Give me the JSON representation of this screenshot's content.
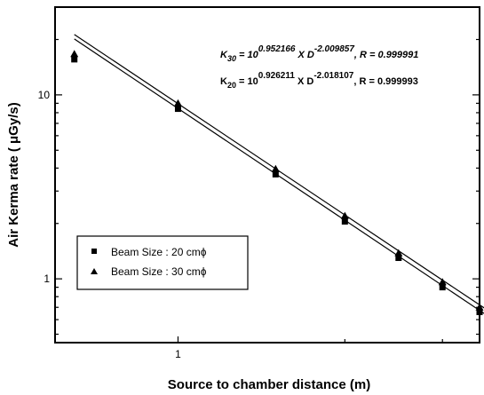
{
  "chart_data": {
    "type": "scatter",
    "xlabel": "Source to chamber distance (m)",
    "ylabel": "Air Kerma rate ( μGy/s)",
    "x_scale": "log",
    "y_scale": "log",
    "xlim": [
      0.6,
      3.5
    ],
    "ylim": [
      0.45,
      30
    ],
    "x_tick_labels": [
      {
        "value": 1,
        "label": "1"
      }
    ],
    "y_tick_labels": [
      {
        "value": 1,
        "label": "1"
      },
      {
        "value": 10,
        "label": "10"
      }
    ],
    "grid": false,
    "legend_position": "lower-left",
    "series": [
      {
        "name": "Beam Size : 20 cmϕ",
        "marker": "square",
        "fit": {
          "log10_coef": 0.926211,
          "exponent": -2.018107
        },
        "x": [
          0.65,
          1.0,
          1.5,
          2.0,
          2.5,
          3.0,
          3.5,
          3.75
        ],
        "y": [
          15.6,
          8.4,
          3.7,
          2.05,
          1.3,
          0.9,
          0.66,
          0.58
        ]
      },
      {
        "name": "Beam Size : 30 cmϕ",
        "marker": "triangle",
        "fit": {
          "log10_coef": 0.952166,
          "exponent": -2.009857
        },
        "x": [
          0.65,
          1.0,
          1.5,
          2.0,
          2.5,
          3.0,
          3.5,
          3.75
        ],
        "y": [
          16.7,
          9.0,
          3.96,
          2.2,
          1.38,
          0.96,
          0.7,
          0.62
        ]
      }
    ],
    "annotations": {
      "eq30": {
        "k": "K",
        "k_sub": "30",
        "eq": " = 10",
        "coef": "0.952166",
        "xd": " X D",
        "exp": "-2.009857",
        "r": ",  R = ",
        "rval": "0.999991"
      },
      "eq20": {
        "k": "K",
        "k_sub": "20",
        "eq": " = 10",
        "coef": "0.926211",
        "xd": " X D",
        "exp": "-2.018107",
        "r": ",  R = ",
        "rval": "0.999993"
      }
    }
  }
}
